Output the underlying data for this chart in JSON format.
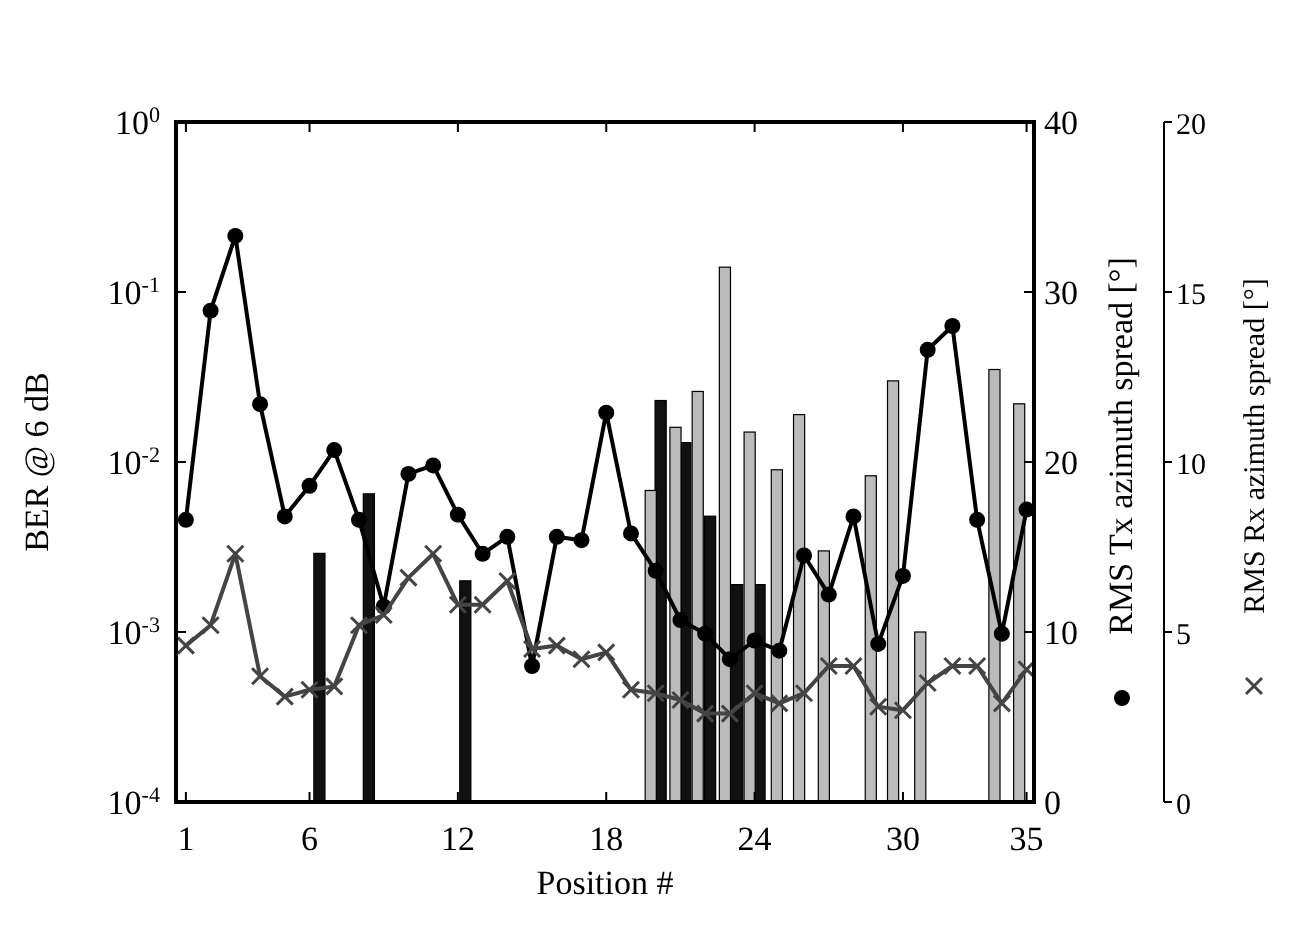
{
  "chart_data": {
    "type": "line",
    "xlabel": "Position #",
    "ylabel": "BER @ 6 dB",
    "y2label": "RMS Tx azimuth spread [°]",
    "y3label": "RMS Rx azimuth spread [°]",
    "x": [
      1,
      2,
      3,
      4,
      5,
      6,
      7,
      8,
      9,
      10,
      11,
      12,
      13,
      14,
      15,
      16,
      17,
      18,
      19,
      20,
      21,
      22,
      23,
      24,
      25,
      26,
      27,
      28,
      29,
      30,
      31,
      32,
      33,
      34,
      35
    ],
    "xlim": [
      0.6,
      35.3
    ],
    "xticks": [
      1,
      6,
      12,
      18,
      24,
      30,
      35
    ],
    "log": "y",
    "ylim": [
      0.0001,
      1
    ],
    "yticks": [
      {
        "value": 0.0001,
        "label": "10$^{-4}$"
      },
      {
        "value": 0.001,
        "label": "10$^{-3}$"
      },
      {
        "value": 0.01,
        "label": "10$^{-2}$"
      },
      {
        "value": 0.1,
        "label": "10$^{-1}$"
      },
      {
        "value": 1,
        "label": "10$^{0}$"
      }
    ],
    "y2lim": [
      0,
      40
    ],
    "y2ticks": [
      0,
      10,
      20,
      30,
      40
    ],
    "y3lim": [
      0,
      20
    ],
    "y3ticks": [
      0,
      5,
      10,
      15,
      20
    ],
    "grid": false,
    "series": [
      {
        "type": "bar",
        "color": "#111111",
        "x": [
          6.4,
          8.4,
          12.3,
          20.2,
          21.2,
          22.2,
          23.3,
          24.2
        ],
        "values": [
          0.0029,
          0.0065,
          0.002,
          0.023,
          0.013,
          0.0048,
          0.0019,
          0.0019
        ]
      },
      {
        "type": "bar",
        "color": "#bbbbbb",
        "x": [
          19.8,
          20.8,
          21.7,
          22.8,
          23.8,
          24.9,
          25.8,
          26.8,
          28.7,
          29.6,
          30.7,
          33.7,
          34.7
        ],
        "values": [
          0.0068,
          0.016,
          0.026,
          0.14,
          0.015,
          0.009,
          0.019,
          0.003,
          0.0083,
          0.03,
          0.001,
          0.035,
          0.022
        ]
      },
      {
        "axis": "y2",
        "color": "#000000",
        "marker": "circle",
        "values": [
          16.6,
          28.9,
          33.3,
          23.4,
          16.8,
          18.6,
          20.7,
          16.6,
          11.5,
          19.3,
          19.8,
          16.9,
          14.6,
          15.6,
          8.0,
          15.6,
          15.4,
          22.9,
          15.8,
          13.6,
          10.7,
          9.9,
          8.4,
          9.5,
          8.9,
          14.5,
          12.2,
          16.8,
          9.3,
          13.3,
          26.6,
          28.0,
          16.6,
          9.9,
          17.2
        ]
      },
      {
        "axis": "y3",
        "color": "#444444",
        "marker": "cross",
        "values": [
          4.6,
          5.2,
          7.3,
          3.7,
          3.1,
          3.3,
          3.4,
          5.2,
          5.5,
          6.6,
          7.3,
          5.8,
          5.8,
          6.5,
          4.5,
          4.6,
          4.2,
          4.4,
          3.3,
          3.2,
          3.0,
          2.6,
          2.6,
          3.2,
          2.9,
          3.2,
          4.0,
          4.0,
          2.8,
          2.7,
          3.5,
          4.0,
          4.0,
          2.9,
          3.9
        ]
      }
    ]
  }
}
